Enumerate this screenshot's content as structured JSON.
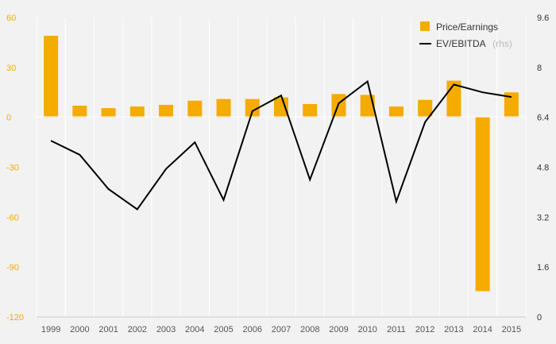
{
  "chart_data": {
    "type": "bar",
    "categories": [
      "1999",
      "2000",
      "2001",
      "2002",
      "2003",
      "2004",
      "2005",
      "2006",
      "2007",
      "2008",
      "2009",
      "2010",
      "2011",
      "2012",
      "2013",
      "2014",
      "2015"
    ],
    "series": [
      {
        "name": "Price/Earnings",
        "type": "bar",
        "axis": "left",
        "color": "#f5ab00",
        "values": [
          49,
          7,
          5.5,
          6.5,
          7.5,
          10,
          11,
          11,
          12,
          8,
          14,
          13.5,
          6.5,
          10.5,
          22,
          -104.5,
          15
        ]
      },
      {
        "name": "EV/EBITDA",
        "name_suffix": "(rhs)",
        "type": "line",
        "axis": "right",
        "color": "#000000",
        "values": [
          5.65,
          5.2,
          4.1,
          3.45,
          4.75,
          5.6,
          3.75,
          6.6,
          7.1,
          4.4,
          6.85,
          7.55,
          3.7,
          6.25,
          7.45,
          7.2,
          7.05
        ]
      }
    ],
    "y_left": {
      "min": -120,
      "max": 60,
      "ticks": [
        "60",
        "30",
        "0",
        "-30",
        "-60",
        "-90",
        "-120"
      ]
    },
    "y_right": {
      "min": 0,
      "max": 9.6,
      "ticks": [
        "9.6",
        "8",
        "6.4",
        "4.8",
        "3.2",
        "1.6",
        "0"
      ]
    },
    "grid": "vertical",
    "legend": "top-right",
    "colors": {
      "bar": "#f5ab00",
      "line": "#000000",
      "background": "#f2f2f2",
      "grid": "#ffffff",
      "left_axis_text": "#f5ab00"
    }
  }
}
